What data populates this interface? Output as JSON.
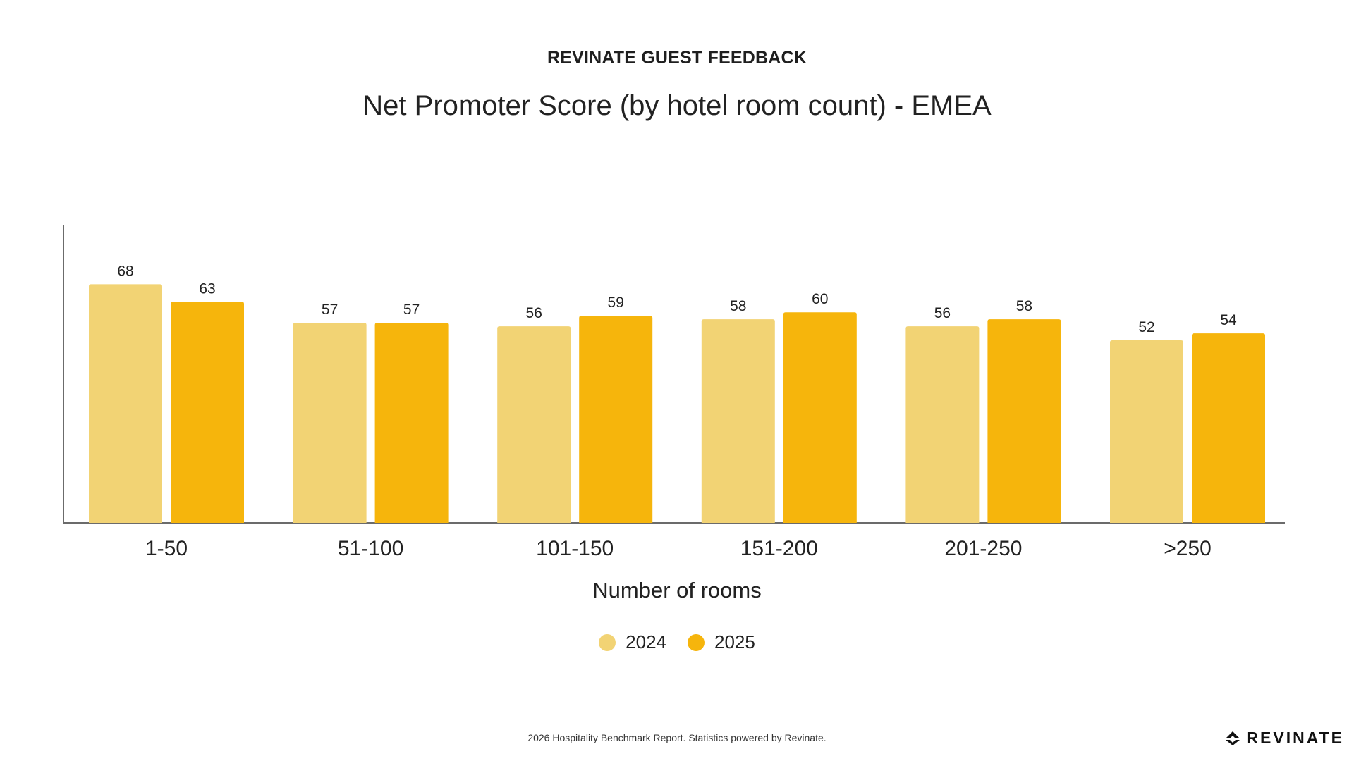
{
  "header": {
    "eyebrow": "REVINATE GUEST FEEDBACK",
    "title": "Net Promoter Score (by hotel room count) - EMEA"
  },
  "chart_data": {
    "type": "bar",
    "title": "Net Promoter Score (by hotel room count) - EMEA",
    "xlabel": "Number of rooms",
    "ylabel": "",
    "categories": [
      "1-50",
      "51-100",
      "101-150",
      "151-200",
      "201-250",
      ">250"
    ],
    "series": [
      {
        "name": "2024",
        "color": "#f2d374",
        "values": [
          68,
          57,
          56,
          58,
          56,
          52
        ]
      },
      {
        "name": "2025",
        "color": "#f6b50c",
        "values": [
          63,
          57,
          59,
          60,
          58,
          54
        ]
      }
    ],
    "ylim": [
      0,
      80
    ],
    "grid": false,
    "legend_position": "bottom",
    "data_labels": true
  },
  "footer": {
    "note": "2026 Hospitality Benchmark Report. Statistics powered by Revinate.",
    "brand": "REVINATE"
  }
}
